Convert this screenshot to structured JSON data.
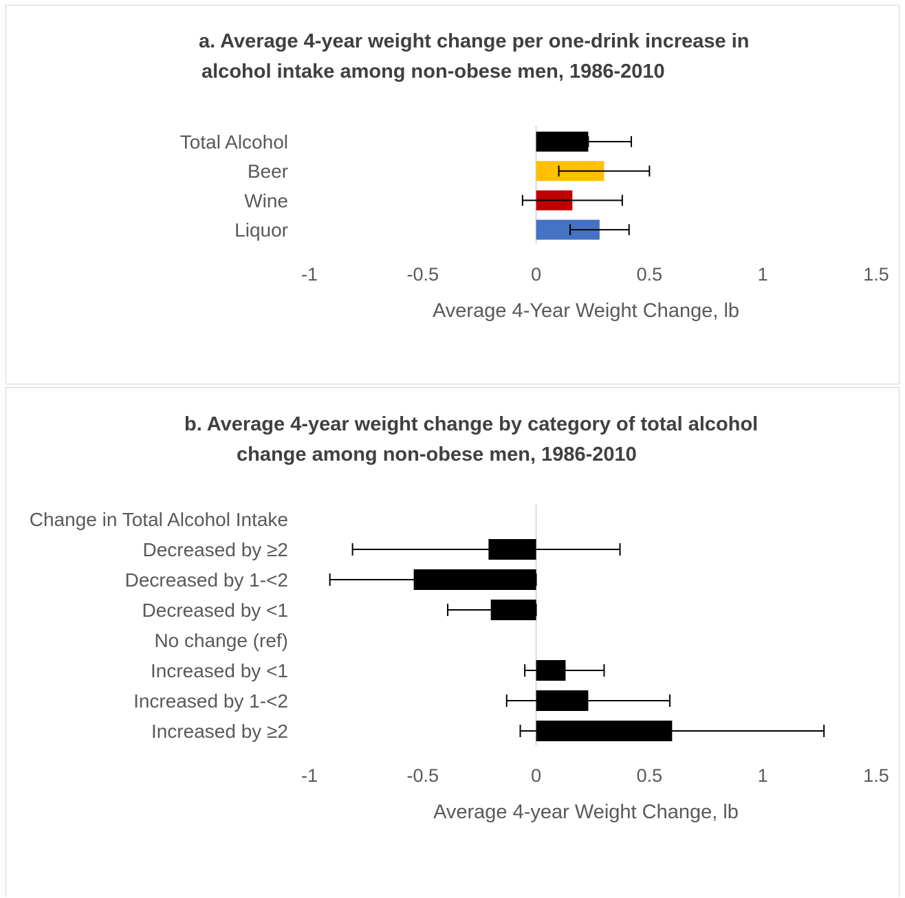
{
  "chart_data": [
    {
      "type": "bar",
      "orientation": "horizontal",
      "title_lines": [
        "a. Average 4-year weight change per one-drink increase in",
        "alcohol intake among non-obese men, 1986-2010"
      ],
      "xlabel": "Average 4-Year Weight Change, lb",
      "xlim": [
        -1,
        1.5
      ],
      "xticks": [
        "-1",
        "-0.5",
        "0",
        "0.5",
        "1",
        "1.5"
      ],
      "grid": false,
      "categories": [
        "Total Alcohol",
        "Beer",
        "Wine",
        "Liquor"
      ],
      "values": [
        0.23,
        0.3,
        0.16,
        0.28
      ],
      "error_low": [
        0.23,
        0.1,
        -0.06,
        0.15
      ],
      "error_high": [
        0.42,
        0.5,
        0.38,
        0.41
      ],
      "colors": [
        "#000000",
        "#FFC000",
        "#C00000",
        "#4472C4"
      ]
    },
    {
      "type": "bar",
      "orientation": "horizontal",
      "title_lines": [
        "b. Average 4-year weight change by category of total alcohol",
        "change among non-obese men, 1986-2010"
      ],
      "xlabel": "Average 4-year Weight Change, lb",
      "xlim": [
        -1,
        1.5
      ],
      "xticks": [
        "-1",
        "-0.5",
        "0",
        "0.5",
        "1",
        "1.5"
      ],
      "grid": false,
      "group_label": "Change in Total Alcohol Intake",
      "categories": [
        "Decreased by ≥2",
        "Decreased by 1-<2",
        "Decreased by <1",
        "No change (ref)",
        "Increased by <1",
        "Increased by 1-<2",
        "Increased by ≥2"
      ],
      "values": [
        -0.21,
        -0.54,
        -0.2,
        null,
        0.13,
        0.23,
        0.6
      ],
      "error_low": [
        -0.81,
        -0.91,
        -0.39,
        null,
        -0.05,
        -0.13,
        -0.07
      ],
      "error_high": [
        0.37,
        0.0,
        0.0,
        null,
        0.3,
        0.59,
        1.27
      ],
      "colors": [
        "#000000",
        "#000000",
        "#000000",
        null,
        "#000000",
        "#000000",
        "#000000"
      ]
    }
  ]
}
